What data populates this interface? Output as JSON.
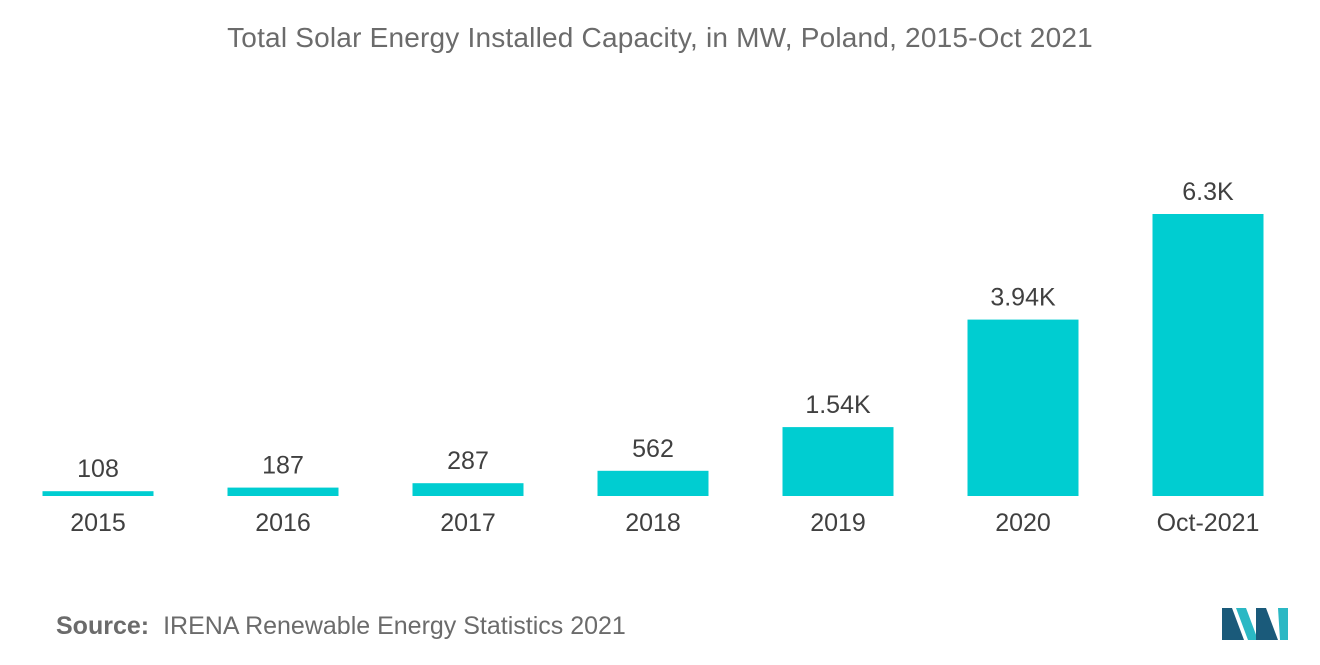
{
  "chart_data": {
    "type": "bar",
    "title": "Total Solar Energy Installed Capacity, in MW, Poland, 2015-Oct 2021",
    "categories": [
      "2015",
      "2016",
      "2017",
      "2018",
      "2019",
      "2020",
      "Oct-2021"
    ],
    "values": [
      108,
      187,
      287,
      562,
      1540,
      3940,
      6300
    ],
    "data_labels": [
      "108",
      "187",
      "287",
      "562",
      "1.54K",
      "3.94K",
      "6.3K"
    ],
    "xlabel": "",
    "ylabel": "",
    "ylim": [
      0,
      6300
    ],
    "grid": false,
    "legend": "none",
    "bar_color": "#00cdd1"
  },
  "source": {
    "label": "Source:",
    "text": "IRENA Renewable Energy Statistics 2021"
  },
  "colors": {
    "title_text": "#6b6b6b",
    "label_text": "#404040",
    "logo_dark": "#1a5a7a",
    "logo_light": "#2bb8c4"
  }
}
